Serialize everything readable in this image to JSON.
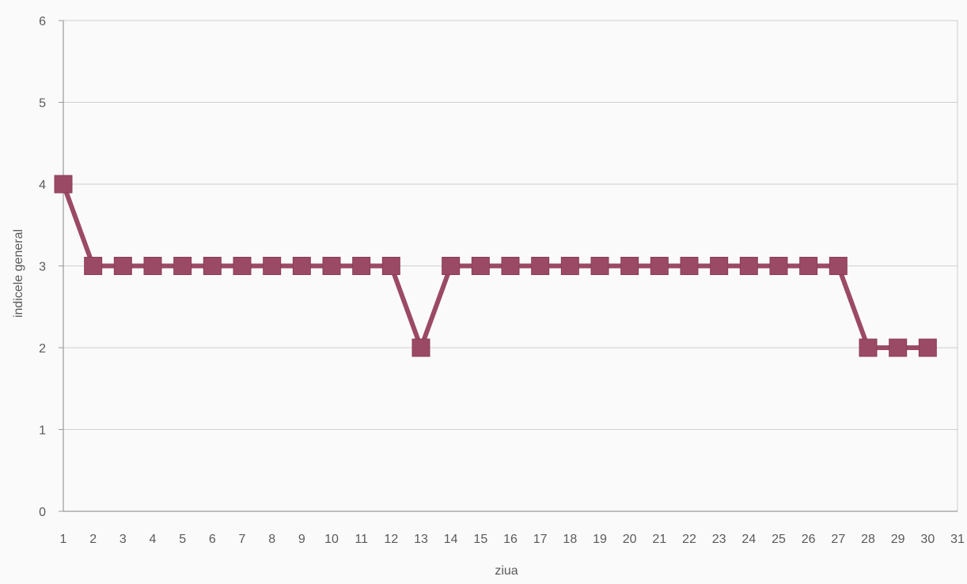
{
  "chart_data": {
    "type": "line",
    "title": "",
    "xlabel": "ziua",
    "ylabel": "indicele general",
    "x_ticks": [
      1,
      2,
      3,
      4,
      5,
      6,
      7,
      8,
      9,
      10,
      11,
      12,
      13,
      14,
      15,
      16,
      17,
      18,
      19,
      20,
      21,
      22,
      23,
      24,
      25,
      26,
      27,
      28,
      29,
      30,
      31
    ],
    "y_ticks": [
      0,
      1,
      2,
      3,
      4,
      5,
      6
    ],
    "xlim": [
      1,
      31
    ],
    "ylim": [
      0,
      6
    ],
    "grid": "horizontal",
    "legend": "none",
    "series": [
      {
        "marker": "square",
        "color": "#9b4a66",
        "x": [
          1,
          2,
          3,
          4,
          5,
          6,
          7,
          8,
          9,
          10,
          11,
          12,
          13,
          14,
          15,
          16,
          17,
          18,
          19,
          20,
          21,
          22,
          23,
          24,
          25,
          26,
          27,
          28,
          29,
          30
        ],
        "y": [
          4,
          3,
          3,
          3,
          3,
          3,
          3,
          3,
          3,
          3,
          3,
          3,
          2,
          3,
          3,
          3,
          3,
          3,
          3,
          3,
          3,
          3,
          3,
          3,
          3,
          3,
          3,
          2,
          2,
          2
        ]
      }
    ]
  }
}
